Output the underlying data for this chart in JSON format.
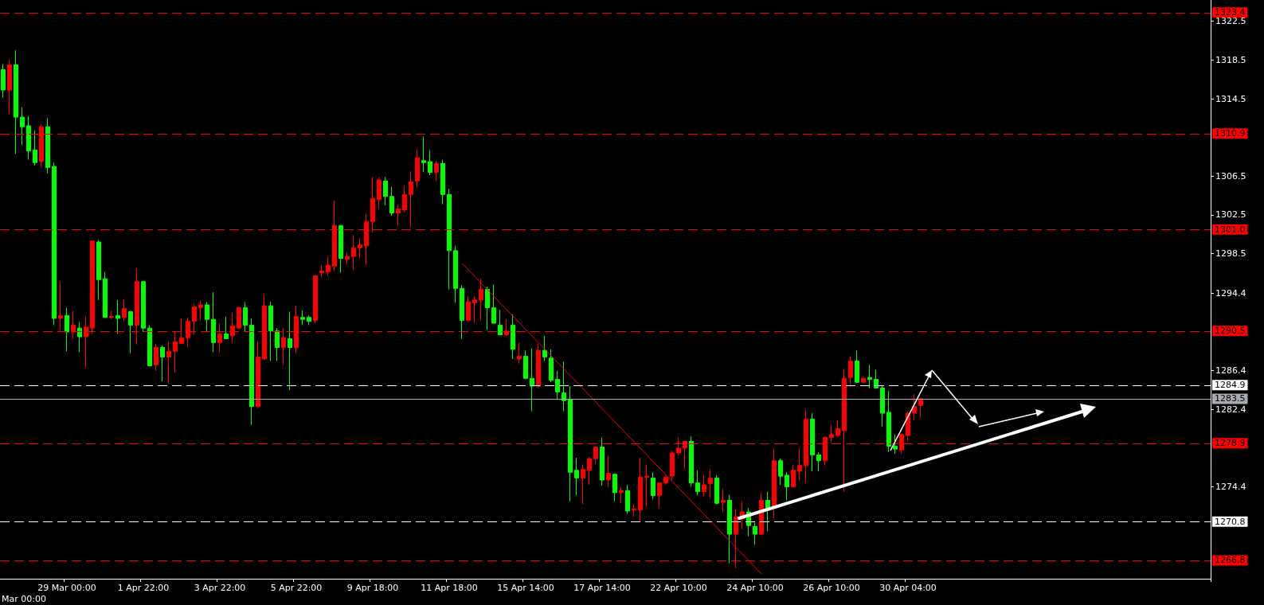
{
  "chart_data": {
    "type": "candlestick",
    "annotations": [
      "Mar 00:00"
    ],
    "categories": [
      null,
      null,
      null,
      null,
      null,
      null,
      null,
      null,
      null,
      null,
      "29 Mar 00:00",
      null,
      null,
      null,
      null,
      null,
      null,
      null,
      null,
      null,
      null,
      null,
      "1 Apr 22:00",
      null,
      null,
      null,
      null,
      null,
      null,
      null,
      null,
      null,
      null,
      null,
      "3 Apr 22:00",
      null,
      null,
      null,
      null,
      null,
      null,
      null,
      null,
      null,
      null,
      null,
      "5 Apr 22:00",
      null,
      null,
      null,
      null,
      null,
      null,
      null,
      null,
      null,
      null,
      null,
      "9 Apr 18:00",
      null,
      null,
      null,
      null,
      null,
      null,
      null,
      null,
      null,
      null,
      null,
      "11 Apr 18:00",
      null,
      null,
      null,
      null,
      null,
      null,
      null,
      null,
      null,
      null,
      null,
      "15 Apr 14:00",
      null,
      null,
      null,
      null,
      null,
      null,
      null,
      null,
      null,
      null,
      null,
      "17 Apr 14:00",
      null,
      null,
      null,
      null,
      null,
      null,
      null,
      null,
      null,
      null,
      null,
      "22 Apr 10:00",
      null,
      null,
      null,
      null,
      null,
      null,
      null,
      null,
      null,
      null,
      null,
      "24 Apr 10:00",
      null,
      null,
      null,
      null,
      null,
      null,
      null,
      null,
      null,
      null,
      null,
      "26 Apr 10:00",
      null,
      null,
      null,
      null,
      null,
      null,
      null,
      null,
      null,
      null,
      null,
      "30 Apr 04:00",
      null,
      null,
      null,
      null,
      null,
      null,
      null,
      null,
      null,
      null,
      null,
      null,
      null,
      null,
      null,
      null,
      null,
      null,
      null,
      null,
      null,
      null,
      null,
      null,
      null,
      null,
      null,
      null,
      null,
      null,
      null,
      null,
      null,
      null,
      null,
      null,
      null,
      null,
      null,
      null,
      null,
      null,
      null,
      null,
      null,
      null,
      null
    ],
    "ohlc": [
      [
        1317.5,
        1318.1,
        1314.6,
        1315.4
      ],
      [
        1315.4,
        1318.6,
        1312.9,
        1318.0
      ],
      [
        1318.0,
        1319.5,
        1308.8,
        1312.6
      ],
      [
        1312.6,
        1313.6,
        1309.7,
        1311.6
      ],
      [
        1311.7,
        1312.7,
        1308.2,
        1309.1
      ],
      [
        1309.2,
        1311.2,
        1307.6,
        1307.9
      ],
      [
        1308.0,
        1311.9,
        1307.4,
        1311.6
      ],
      [
        1311.6,
        1312.5,
        1306.8,
        1307.4
      ],
      [
        1307.5,
        1307.9,
        1291.1,
        1291.8
      ],
      [
        1291.8,
        1295.6,
        1290.6,
        1292.1
      ],
      [
        1292.1,
        1292.9,
        1288.4,
        1290.4
      ],
      [
        1290.4,
        1292.6,
        1289.7,
        1291.1
      ],
      [
        1290.8,
        1291.4,
        1288.3,
        1289.9
      ],
      [
        1289.9,
        1292.0,
        1286.7,
        1290.9
      ],
      [
        1290.8,
        1299.9,
        1290.2,
        1299.8
      ],
      [
        1299.7,
        1299.9,
        1293.7,
        1295.8
      ],
      [
        1295.9,
        1296.6,
        1291.9,
        1291.9
      ],
      [
        1291.9,
        1292.6,
        1291.7,
        1292.0
      ],
      [
        1292.1,
        1293.7,
        1290.2,
        1291.8
      ],
      [
        1291.9,
        1293.8,
        1291.5,
        1292.8
      ],
      [
        1292.5,
        1292.6,
        1288.2,
        1291.1
      ],
      [
        1291.1,
        1297.0,
        1289.1,
        1295.6
      ],
      [
        1295.6,
        1295.6,
        1290.4,
        1290.8
      ],
      [
        1290.8,
        1291.1,
        1286.9,
        1286.9
      ],
      [
        1287.0,
        1289.2,
        1286.4,
        1288.8
      ],
      [
        1288.8,
        1289.0,
        1285.3,
        1287.8
      ],
      [
        1287.8,
        1289.4,
        1285.1,
        1288.4
      ],
      [
        1288.4,
        1290.4,
        1286.2,
        1289.4
      ],
      [
        1289.2,
        1291.8,
        1289.2,
        1289.8
      ],
      [
        1289.8,
        1291.9,
        1288.8,
        1291.5
      ],
      [
        1291.5,
        1293.3,
        1290.1,
        1293.0
      ],
      [
        1292.9,
        1293.7,
        1291.6,
        1293.2
      ],
      [
        1293.2,
        1293.5,
        1290.4,
        1291.7
      ],
      [
        1291.7,
        1294.5,
        1288.3,
        1289.3
      ],
      [
        1289.3,
        1291.3,
        1288.3,
        1290.2
      ],
      [
        1290.2,
        1292.0,
        1289.7,
        1289.7
      ],
      [
        1290.0,
        1292.4,
        1289.3,
        1291.0
      ],
      [
        1290.8,
        1292.9,
        1290.7,
        1292.9
      ],
      [
        1292.9,
        1293.5,
        1290.4,
        1291.1
      ],
      [
        1291.1,
        1291.8,
        1280.8,
        1282.7
      ],
      [
        1282.7,
        1289.4,
        1282.5,
        1287.8
      ],
      [
        1287.6,
        1294.3,
        1287.5,
        1293.1
      ],
      [
        1293.1,
        1293.5,
        1287.4,
        1290.5
      ],
      [
        1290.5,
        1290.8,
        1287.4,
        1288.8
      ],
      [
        1288.8,
        1290.8,
        1287.0,
        1289.8
      ],
      [
        1289.7,
        1292.5,
        1284.4,
        1288.8
      ],
      [
        1288.8,
        1293.1,
        1288.2,
        1292.0
      ],
      [
        1291.9,
        1292.6,
        1291.1,
        1291.7
      ],
      [
        1291.9,
        1292.1,
        1291.1,
        1291.5
      ],
      [
        1291.6,
        1296.3,
        1291.3,
        1296.2
      ],
      [
        1296.5,
        1297.3,
        1296.0,
        1296.7
      ],
      [
        1296.6,
        1298.2,
        1296.2,
        1297.3
      ],
      [
        1297.2,
        1304.0,
        1296.7,
        1301.4
      ],
      [
        1301.4,
        1301.4,
        1296.5,
        1298.0
      ],
      [
        1297.9,
        1298.6,
        1297.4,
        1298.2
      ],
      [
        1298.2,
        1300.4,
        1296.8,
        1299.1
      ],
      [
        1299.1,
        1300.1,
        1298.0,
        1299.4
      ],
      [
        1299.3,
        1302.6,
        1297.3,
        1301.8
      ],
      [
        1301.8,
        1306.4,
        1300.7,
        1304.2
      ],
      [
        1304.1,
        1306.4,
        1303.1,
        1306.1
      ],
      [
        1306.0,
        1306.4,
        1303.5,
        1304.4
      ],
      [
        1304.4,
        1305.4,
        1302.4,
        1302.7
      ],
      [
        1302.7,
        1303.6,
        1301.4,
        1303.1
      ],
      [
        1303.0,
        1305.5,
        1302.8,
        1304.6
      ],
      [
        1304.6,
        1307.0,
        1301.2,
        1305.9
      ],
      [
        1306.0,
        1309.3,
        1305.4,
        1308.4
      ],
      [
        1308.1,
        1310.6,
        1306.9,
        1307.9
      ],
      [
        1308.0,
        1309.2,
        1306.6,
        1306.9
      ],
      [
        1306.9,
        1308.1,
        1306.0,
        1307.8
      ],
      [
        1307.8,
        1308.2,
        1303.6,
        1304.6
      ],
      [
        1304.6,
        1305.2,
        1294.8,
        1298.8
      ],
      [
        1298.8,
        1299.3,
        1293.4,
        1294.9
      ],
      [
        1294.9,
        1295.2,
        1289.7,
        1291.6
      ],
      [
        1291.6,
        1294.1,
        1291.5,
        1293.5
      ],
      [
        1293.4,
        1294.1,
        1291.3,
        1293.7
      ],
      [
        1293.7,
        1295.9,
        1291.6,
        1294.8
      ],
      [
        1294.8,
        1295.1,
        1290.6,
        1292.9
      ],
      [
        1292.9,
        1295.3,
        1291.3,
        1291.3
      ],
      [
        1291.1,
        1292.7,
        1290.1,
        1290.1
      ],
      [
        1290.1,
        1291.7,
        1290.0,
        1290.5
      ],
      [
        1291.1,
        1292.2,
        1287.6,
        1288.6
      ],
      [
        1287.6,
        1289.3,
        1287.1,
        1287.9
      ],
      [
        1287.9,
        1288.5,
        1285.5,
        1285.6
      ],
      [
        1285.6,
        1288.7,
        1282.2,
        1284.8
      ],
      [
        1284.8,
        1289.2,
        1284.6,
        1288.5
      ],
      [
        1288.5,
        1290.0,
        1287.4,
        1287.8
      ],
      [
        1287.7,
        1288.6,
        1285.2,
        1285.4
      ],
      [
        1285.5,
        1286.4,
        1283.4,
        1284.2
      ],
      [
        1284.1,
        1287.3,
        1282.2,
        1283.3
      ],
      [
        1283.4,
        1284.8,
        1272.9,
        1275.9
      ],
      [
        1276.1,
        1277.4,
        1273.5,
        1275.3
      ],
      [
        1275.3,
        1276.7,
        1272.6,
        1276.2
      ],
      [
        1276.1,
        1277.5,
        1274.6,
        1277.3
      ],
      [
        1277.3,
        1278.5,
        1276.7,
        1278.5
      ],
      [
        1278.5,
        1279.5,
        1274.5,
        1275.1
      ],
      [
        1275.1,
        1277.6,
        1274.4,
        1275.8
      ],
      [
        1275.7,
        1275.7,
        1272.9,
        1273.8
      ],
      [
        1273.8,
        1274.4,
        1272.7,
        1274.0
      ],
      [
        1274.0,
        1274.6,
        1271.6,
        1271.9
      ],
      [
        1272.0,
        1272.6,
        1271.3,
        1272.1
      ],
      [
        1272.0,
        1277.4,
        1270.8,
        1275.4
      ],
      [
        1275.4,
        1276.7,
        1272.4,
        1275.5
      ],
      [
        1275.3,
        1275.9,
        1273.1,
        1273.5
      ],
      [
        1273.5,
        1274.9,
        1272.2,
        1274.8
      ],
      [
        1274.8,
        1275.6,
        1274.6,
        1275.4
      ],
      [
        1275.5,
        1278.1,
        1275.1,
        1277.9
      ],
      [
        1277.9,
        1279.5,
        1277.6,
        1278.4
      ],
      [
        1278.4,
        1279.1,
        1276.2,
        1279.1
      ],
      [
        1279.1,
        1279.6,
        1274.4,
        1274.8
      ],
      [
        1274.8,
        1276.1,
        1273.5,
        1273.9
      ],
      [
        1273.9,
        1275.6,
        1273.4,
        1274.6
      ],
      [
        1274.7,
        1276.2,
        1273.2,
        1275.3
      ],
      [
        1275.3,
        1275.6,
        1272.6,
        1272.7
      ],
      [
        1272.8,
        1274.2,
        1271.8,
        1273.0
      ],
      [
        1273.0,
        1273.6,
        1266.5,
        1269.5
      ],
      [
        1269.5,
        1272.1,
        1266.0,
        1271.3
      ],
      [
        1271.1,
        1272.9,
        1270.0,
        1271.8
      ],
      [
        1271.8,
        1272.2,
        1269.3,
        1270.4
      ],
      [
        1270.3,
        1270.7,
        1268.4,
        1269.5
      ],
      [
        1269.5,
        1273.8,
        1269.4,
        1273.0
      ],
      [
        1273.0,
        1273.9,
        1269.8,
        1272.2
      ],
      [
        1272.2,
        1278.3,
        1271.1,
        1277.1
      ],
      [
        1277.1,
        1277.3,
        1274.6,
        1275.5
      ],
      [
        1275.6,
        1275.9,
        1273.0,
        1274.4
      ],
      [
        1274.4,
        1276.7,
        1274.3,
        1276.1
      ],
      [
        1276.0,
        1278.4,
        1275.1,
        1276.6
      ],
      [
        1276.6,
        1282.4,
        1274.8,
        1281.4
      ],
      [
        1281.4,
        1282.0,
        1276.0,
        1277.7
      ],
      [
        1277.7,
        1278.0,
        1276.0,
        1277.1
      ],
      [
        1277.1,
        1279.6,
        1276.6,
        1279.5
      ],
      [
        1279.5,
        1280.8,
        1279.0,
        1279.8
      ],
      [
        1279.7,
        1281.3,
        1279.5,
        1280.4
      ],
      [
        1280.2,
        1286.6,
        1273.9,
        1285.6
      ],
      [
        1285.7,
        1287.9,
        1284.7,
        1287.4
      ],
      [
        1287.4,
        1288.5,
        1285.1,
        1285.2
      ],
      [
        1285.2,
        1285.8,
        1285.1,
        1285.6
      ],
      [
        1285.7,
        1287.0,
        1284.6,
        1285.5
      ],
      [
        1285.5,
        1286.5,
        1284.6,
        1284.6
      ],
      [
        1284.6,
        1284.8,
        1280.6,
        1282.0
      ],
      [
        1282.1,
        1284.3,
        1278.0,
        1278.6
      ],
      [
        1278.6,
        1279.8,
        1277.8,
        1278.3
      ],
      [
        1278.2,
        1279.9,
        1277.8,
        1279.8
      ],
      [
        1279.7,
        1282.2,
        1279.1,
        1282.0
      ],
      [
        1282.0,
        1284.0,
        1281.3,
        1282.7
      ],
      [
        1282.8,
        1283.6,
        1281.5,
        1283.5
      ],
      null,
      null,
      null,
      null,
      null,
      null,
      null,
      null,
      null,
      null,
      null,
      null,
      null,
      null,
      null,
      null,
      null,
      null,
      null,
      null,
      null,
      null,
      null,
      null,
      null,
      null,
      null,
      null,
      null,
      null,
      null,
      null,
      null,
      null,
      null,
      null,
      null,
      null,
      null,
      null,
      null,
      null,
      null,
      null,
      null
    ],
    "colors": [
      "#00ff00",
      "#ff0000",
      "#00ff00",
      "#00ff00",
      "#00ff00",
      "#00ff00",
      "#ff0000",
      "#00ff00",
      "#00ff00",
      "#ff0000",
      "#00ff00",
      "#ff0000",
      "#00ff00",
      "#ff0000",
      "#ff0000",
      "#00ff00",
      "#00ff00",
      "#ff0000",
      "#00ff00",
      "#ff0000",
      "#00ff00",
      "#ff0000",
      "#00ff00",
      "#00ff00",
      "#ff0000",
      "#00ff00",
      "#ff0000",
      "#ff0000",
      "#ff0000",
      "#ff0000",
      "#ff0000",
      "#ff0000",
      "#00ff00",
      "#00ff00",
      "#ff0000",
      "#00ff00",
      "#ff0000",
      "#ff0000",
      "#00ff00",
      "#00ff00",
      "#ff0000",
      "#ff0000",
      "#00ff00",
      "#00ff00",
      "#ff0000",
      "#00ff00",
      "#ff0000",
      "#00ff00",
      "#00ff00",
      "#ff0000",
      "#ff0000",
      "#ff0000",
      "#ff0000",
      "#00ff00",
      "#ff0000",
      "#ff0000",
      "#ff0000",
      "#ff0000",
      "#ff0000",
      "#ff0000",
      "#00ff00",
      "#00ff00",
      "#ff0000",
      "#ff0000",
      "#ff0000",
      "#ff0000",
      "#00ff00",
      "#00ff00",
      "#ff0000",
      "#00ff00",
      "#00ff00",
      "#00ff00",
      "#00ff00",
      "#ff0000",
      "#ff0000",
      "#ff0000",
      "#00ff00",
      "#00ff00",
      "#00ff00",
      "#ff0000",
      "#00ff00",
      "#ff0000",
      "#00ff00",
      "#00ff00",
      "#ff0000",
      "#00ff00",
      "#00ff00",
      "#00ff00",
      "#00ff00",
      "#00ff00",
      "#00ff00",
      "#ff0000",
      "#ff0000",
      "#ff0000",
      "#00ff00",
      "#ff0000",
      "#00ff00",
      "#ff0000",
      "#00ff00",
      "#ff0000",
      "#ff0000",
      "#ff0000",
      "#00ff00",
      "#ff0000",
      "#ff0000",
      "#ff0000",
      "#ff0000",
      "#ff0000",
      "#00ff00",
      "#00ff00",
      "#ff0000",
      "#ff0000",
      "#00ff00",
      "#ff0000",
      "#00ff00",
      "#ff0000",
      "#ff0000",
      "#00ff00",
      "#00ff00",
      "#ff0000",
      "#00ff00",
      "#ff0000",
      "#00ff00",
      "#00ff00",
      "#ff0000",
      "#ff0000",
      "#ff0000",
      "#00ff00",
      "#00ff00",
      "#ff0000",
      "#ff0000",
      "#ff0000",
      "#ff0000",
      "#ff0000",
      "#00ff00",
      "#ff0000",
      "#00ff00",
      "#00ff00",
      "#00ff00",
      "#00ff00",
      "#00ff00",
      "#ff0000",
      "#ff0000",
      "#ff0000",
      "#ff0000",
      null,
      null,
      null,
      null,
      null,
      null,
      null,
      null,
      null,
      null,
      null,
      null,
      null,
      null,
      null,
      null,
      null,
      null,
      null,
      null,
      null,
      null,
      null,
      null,
      null,
      null,
      null,
      null,
      null,
      null,
      null,
      null,
      null,
      null,
      null,
      null,
      null,
      null,
      null,
      null,
      null,
      null,
      null,
      null,
      null
    ],
    "series": [
      {
        "type": "line",
        "color": "#ff0000",
        "values": [
          null,
          null,
          null,
          null,
          null,
          null,
          null,
          null,
          null,
          null,
          null,
          null,
          null,
          null,
          null,
          null,
          null,
          null,
          null,
          null,
          null,
          null,
          null,
          null,
          null,
          null,
          null,
          null,
          null,
          null,
          null,
          null,
          null,
          null,
          null,
          null,
          null,
          null,
          null,
          null,
          null,
          null,
          null,
          null,
          null,
          null,
          null,
          null,
          null,
          null,
          null,
          null,
          null,
          null,
          null,
          null,
          null,
          null,
          null,
          null,
          null,
          null,
          null,
          null,
          null,
          null,
          null,
          null,
          null,
          null,
          null,
          null,
          1297.5,
          null,
          null,
          null,
          null,
          null,
          null,
          null,
          null,
          null,
          null,
          null,
          null,
          null,
          null,
          null,
          null,
          null,
          null,
          null,
          null,
          null,
          null,
          null,
          null,
          null,
          null,
          null,
          null,
          null,
          null,
          null,
          null,
          null,
          null,
          null,
          null,
          null,
          null,
          null,
          null,
          null,
          null,
          null,
          null,
          null,
          null,
          1265.4,
          null,
          null,
          null,
          null,
          null,
          null,
          null,
          null,
          null,
          null,
          null,
          null,
          null,
          null,
          null,
          null,
          null,
          null,
          null,
          null,
          null,
          null,
          null,
          null,
          null,
          null,
          null,
          null,
          null,
          null,
          null,
          null,
          null,
          null,
          null,
          null,
          null,
          null,
          null,
          null,
          null,
          null,
          null,
          null,
          null,
          null,
          null,
          null,
          null,
          null,
          null,
          null,
          null,
          null,
          null,
          null,
          null,
          null,
          null,
          null,
          null,
          null,
          null,
          null,
          null,
          null,
          null,
          null,
          null,
          null
        ]
      }
    ],
    "ylim": [
      1264.9,
      1324.7
    ],
    "yticks": [
      1322.5,
      1318.5,
      1314.5,
      1306.5,
      1302.5,
      1298.5,
      1294.4,
      1286.4,
      1282.4,
      1274.4
    ],
    "ref_lines": [
      {
        "axis": "y",
        "value": 1323.4,
        "label": "1323.4",
        "color": "#ff0000",
        "line_style": "dashed"
      },
      {
        "axis": "y",
        "value": 1310.9,
        "label": "1310.9",
        "color": "#ff0000",
        "line_style": "dashed"
      },
      {
        "axis": "y",
        "value": 1301.0,
        "label": "1301.0",
        "color": "#ff0000",
        "line_style": "dashed"
      },
      {
        "axis": "y",
        "value": 1290.5,
        "label": "1290.5",
        "color": "#ff0000",
        "line_style": "dashed"
      },
      {
        "axis": "y",
        "value": 1284.9,
        "label": "1284.9",
        "color": "#ffffff",
        "line_style": "dashed"
      },
      {
        "axis": "y",
        "value": 1283.5,
        "label": "1283.5",
        "color": "#a6acb4",
        "line_style": "solid"
      },
      {
        "axis": "y",
        "value": 1278.9,
        "label": "1278.9",
        "color": "#ff0000",
        "line_style": "dashed"
      },
      {
        "axis": "y",
        "value": 1270.8,
        "label": "1270.8",
        "color": "#ffffff",
        "line_style": "dashed"
      },
      {
        "axis": "y",
        "value": 1266.8,
        "label": "1266.8",
        "color": "#ff0000",
        "line_style": "dashed"
      }
    ],
    "grid": false,
    "marker": "none"
  }
}
